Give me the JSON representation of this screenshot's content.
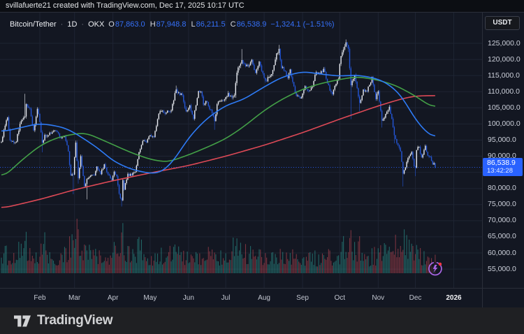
{
  "attribution": "svillafuerte21 created with TradingView.com, Dec 17, 2025 10:17 UTC",
  "legend": {
    "symbol": "Bitcoin/Tether",
    "separator": "·",
    "interval": "1D",
    "exchange": "OKX",
    "ohlc": [
      {
        "label": "O",
        "value": "87,863.0"
      },
      {
        "label": "H",
        "value": "87,948.8"
      },
      {
        "label": "L",
        "value": "86,211.5"
      },
      {
        "label": "C",
        "value": "86,538.9"
      }
    ],
    "change": "−1,324.1 (−1.51%)"
  },
  "currency_button": "USDT",
  "price_axis": {
    "tick_prices": [
      125000,
      120000,
      115000,
      110000,
      105000,
      100000,
      95000,
      90000,
      80000,
      75000,
      70000,
      65000,
      60000,
      55000
    ],
    "grid_prices": [
      125000,
      120000,
      115000,
      110000,
      105000,
      100000,
      95000,
      90000,
      85000,
      80000,
      75000,
      70000,
      65000,
      60000,
      55000
    ],
    "last_price_label": "86,538.9",
    "countdown": "13:42:28"
  },
  "time_axis": {
    "months": [
      {
        "label": "Feb",
        "date": "2025-02-01"
      },
      {
        "label": "Mar",
        "date": "2025-03-01"
      },
      {
        "label": "Apr",
        "date": "2025-04-01"
      },
      {
        "label": "May",
        "date": "2025-05-01"
      },
      {
        "label": "Jun",
        "date": "2025-06-01"
      },
      {
        "label": "Jul",
        "date": "2025-07-01"
      },
      {
        "label": "Aug",
        "date": "2025-08-01"
      },
      {
        "label": "Sep",
        "date": "2025-09-01"
      },
      {
        "label": "Oct",
        "date": "2025-10-01"
      },
      {
        "label": "Nov",
        "date": "2025-11-01"
      },
      {
        "label": "Dec",
        "date": "2025-12-01"
      },
      {
        "label": "2026",
        "date": "2026-01-01",
        "year": true
      }
    ]
  },
  "footer": {
    "brand": "TradingView"
  },
  "colors": {
    "background": "#131722",
    "grid": "#1e2433",
    "border": "#2a2e39",
    "candle_up": "#e9ecf2",
    "candle_down": "#2457d9",
    "ma_fast": "#2e7bf6",
    "ma_mid": "#43a047",
    "ma_slow": "#dd4956",
    "vol_up": "rgba(46,164,154,0.55)",
    "vol_down": "rgba(222,80,92,0.5)",
    "price_line": "#2962ff",
    "badge": "#2962ff",
    "flash_icon": "#aa66e6",
    "alert_dot": "#f23645"
  },
  "chart_data": {
    "type": "candlestick",
    "title": "Bitcoin/Tether 1D OKX",
    "x_range_dates": [
      "2025-01-01",
      "2026-01-15"
    ],
    "y_axis": {
      "min": 52000,
      "max": 129000,
      "tick_step": 5000
    },
    "grid": true,
    "last_bar": {
      "open": 87863.0,
      "high": 87948.8,
      "low": 86211.5,
      "close": 86538.9,
      "change": -1324.1,
      "change_pct": -1.51,
      "countdown": "13:42:28"
    },
    "current_price": 86538.9,
    "price_anchors": [
      [
        "2025-01-01",
        94400
      ],
      [
        "2025-01-03",
        98200
      ],
      [
        "2025-01-06",
        102100
      ],
      [
        "2025-01-08",
        95000
      ],
      [
        "2025-01-10",
        94700
      ],
      [
        "2025-01-13",
        94500
      ],
      [
        "2025-01-16",
        100000
      ],
      [
        "2025-01-20",
        102300,
        null,
        109350
      ],
      [
        "2025-01-21",
        106150
      ],
      [
        "2025-01-24",
        104800
      ],
      [
        "2025-01-27",
        98000,
        97750
      ],
      [
        "2025-01-30",
        104700
      ],
      [
        "2025-02-01",
        100600
      ],
      [
        "2025-02-03",
        94200,
        91200
      ],
      [
        "2025-02-05",
        96600
      ],
      [
        "2025-02-08",
        96500
      ],
      [
        "2025-02-12",
        97800
      ],
      [
        "2025-02-15",
        97500
      ],
      [
        "2025-02-18",
        95600
      ],
      [
        "2025-02-21",
        96100
      ],
      [
        "2025-02-24",
        91500
      ],
      [
        "2025-02-26",
        84000
      ],
      [
        "2025-02-28",
        84300,
        78200
      ],
      [
        "2025-03-02",
        94200
      ],
      [
        "2025-03-04",
        83200,
        81500
      ],
      [
        "2025-03-06",
        90000
      ],
      [
        "2025-03-09",
        80700
      ],
      [
        "2025-03-11",
        82900,
        76600
      ],
      [
        "2025-03-14",
        84000
      ],
      [
        "2025-03-17",
        84000
      ],
      [
        "2025-03-19",
        86800
      ],
      [
        "2025-03-22",
        84400
      ],
      [
        "2025-03-25",
        87500
      ],
      [
        "2025-03-28",
        84400
      ],
      [
        "2025-03-31",
        82500
      ],
      [
        "2025-04-02",
        85200
      ],
      [
        "2025-04-04",
        83800
      ],
      [
        "2025-04-06",
        78400
      ],
      [
        "2025-04-08",
        76300,
        74400
      ],
      [
        "2025-04-09",
        82600
      ],
      [
        "2025-04-10",
        79600
      ],
      [
        "2025-04-13",
        84500
      ],
      [
        "2025-04-16",
        84000
      ],
      [
        "2025-04-19",
        85200
      ],
      [
        "2025-04-22",
        91200
      ],
      [
        "2025-04-25",
        94700
      ],
      [
        "2025-04-28",
        94300
      ],
      [
        "2025-05-01",
        96500
      ],
      [
        "2025-05-04",
        95900
      ],
      [
        "2025-05-08",
        103200
      ],
      [
        "2025-05-11",
        104100
      ],
      [
        "2025-05-14",
        103500
      ],
      [
        "2025-05-18",
        104200
      ],
      [
        "2025-05-22",
        110700,
        null,
        111900
      ],
      [
        "2025-05-25",
        109000
      ],
      [
        "2025-05-27",
        108900
      ],
      [
        "2025-05-30",
        103900
      ],
      [
        "2025-06-02",
        105800
      ],
      [
        "2025-06-05",
        101600
      ],
      [
        "2025-06-09",
        110200
      ],
      [
        "2025-06-11",
        110000
      ],
      [
        "2025-06-13",
        106000
      ],
      [
        "2025-06-16",
        106800
      ],
      [
        "2025-06-20",
        103300
      ],
      [
        "2025-06-22",
        100900,
        98200
      ],
      [
        "2025-06-24",
        106100
      ],
      [
        "2025-06-27",
        107100
      ],
      [
        "2025-06-30",
        107600
      ],
      [
        "2025-07-03",
        109600
      ],
      [
        "2025-07-06",
        108200
      ],
      [
        "2025-07-08",
        108900
      ],
      [
        "2025-07-10",
        115900
      ],
      [
        "2025-07-14",
        119800,
        null,
        123200
      ],
      [
        "2025-07-16",
        118700
      ],
      [
        "2025-07-19",
        117900
      ],
      [
        "2025-07-22",
        119900
      ],
      [
        "2025-07-25",
        115800
      ],
      [
        "2025-07-28",
        119300
      ],
      [
        "2025-07-31",
        115700
      ],
      [
        "2025-08-02",
        113400
      ],
      [
        "2025-08-06",
        115000
      ],
      [
        "2025-08-08",
        116700
      ],
      [
        "2025-08-11",
        121900
      ],
      [
        "2025-08-13",
        123300,
        null,
        124500
      ],
      [
        "2025-08-15",
        117400
      ],
      [
        "2025-08-18",
        116300
      ],
      [
        "2025-08-20",
        114200
      ],
      [
        "2025-08-22",
        116900
      ],
      [
        "2025-08-24",
        113000
      ],
      [
        "2025-08-26",
        109800
      ],
      [
        "2025-08-29",
        108400
      ],
      [
        "2025-08-31",
        108200
      ],
      [
        "2025-09-03",
        111700
      ],
      [
        "2025-09-06",
        110300
      ],
      [
        "2025-09-09",
        111500
      ],
      [
        "2025-09-12",
        116100
      ],
      [
        "2025-09-15",
        115400
      ],
      [
        "2025-09-18",
        117100
      ],
      [
        "2025-09-21",
        112600
      ],
      [
        "2025-09-25",
        109200
      ],
      [
        "2025-09-28",
        112400
      ],
      [
        "2025-09-30",
        114000
      ],
      [
        "2025-10-01",
        118600
      ],
      [
        "2025-10-03",
        122200
      ],
      [
        "2025-10-06",
        125300,
        null,
        126200
      ],
      [
        "2025-10-08",
        123300
      ],
      [
        "2025-10-10",
        112000,
        101500
      ],
      [
        "2025-10-13",
        115200
      ],
      [
        "2025-10-16",
        108500
      ],
      [
        "2025-10-17",
        106500,
        103900
      ],
      [
        "2025-10-20",
        110700
      ],
      [
        "2025-10-23",
        110100
      ],
      [
        "2025-10-27",
        114600
      ],
      [
        "2025-10-30",
        107700
      ],
      [
        "2025-11-01",
        110100
      ],
      [
        "2025-11-04",
        101000,
        98900
      ],
      [
        "2025-11-07",
        103100
      ],
      [
        "2025-11-10",
        105300
      ],
      [
        "2025-11-13",
        99000
      ],
      [
        "2025-11-14",
        96500,
        94000
      ],
      [
        "2025-11-17",
        93500
      ],
      [
        "2025-11-19",
        91500
      ],
      [
        "2025-11-21",
        84600,
        80600
      ],
      [
        "2025-11-24",
        88200
      ],
      [
        "2025-11-26",
        90000
      ],
      [
        "2025-11-28",
        91300
      ],
      [
        "2025-11-30",
        86800
      ],
      [
        "2025-12-01",
        86400,
        83800
      ],
      [
        "2025-12-02",
        91900
      ],
      [
        "2025-12-04",
        92900
      ],
      [
        "2025-12-06",
        89600
      ],
      [
        "2025-12-09",
        93200
      ],
      [
        "2025-12-11",
        90200
      ],
      [
        "2025-12-13",
        89800
      ],
      [
        "2025-12-15",
        87400
      ],
      [
        "2025-12-16",
        87863
      ],
      [
        "2025-12-17",
        86539,
        86212,
        87949
      ]
    ],
    "ma_lines": [
      {
        "name": "SMA-fast",
        "anchors": [
          [
            "2025-01-01",
            97500
          ],
          [
            "2025-02-01",
            100200
          ],
          [
            "2025-02-20",
            99000
          ],
          [
            "2025-03-01",
            97300
          ],
          [
            "2025-03-20",
            92500
          ],
          [
            "2025-04-01",
            88500
          ],
          [
            "2025-04-15",
            86000
          ],
          [
            "2025-05-01",
            84600
          ],
          [
            "2025-05-10",
            84800
          ],
          [
            "2025-05-20",
            88500
          ],
          [
            "2025-06-01",
            95800
          ],
          [
            "2025-06-15",
            101500
          ],
          [
            "2025-07-01",
            105800
          ],
          [
            "2025-07-15",
            107500
          ],
          [
            "2025-08-01",
            111500
          ],
          [
            "2025-08-15",
            114500
          ],
          [
            "2025-09-01",
            116300
          ],
          [
            "2025-09-15",
            115500
          ],
          [
            "2025-10-01",
            114800
          ],
          [
            "2025-10-15",
            115200
          ],
          [
            "2025-11-01",
            114000
          ],
          [
            "2025-11-10",
            112200
          ],
          [
            "2025-11-20",
            108800
          ],
          [
            "2025-12-01",
            101200
          ],
          [
            "2025-12-10",
            97400
          ],
          [
            "2025-12-17",
            95000
          ]
        ]
      },
      {
        "name": "SMA-mid",
        "anchors": [
          [
            "2025-01-01",
            82800
          ],
          [
            "2025-01-15",
            88000
          ],
          [
            "2025-02-01",
            93300
          ],
          [
            "2025-02-15",
            95800
          ],
          [
            "2025-03-01",
            96900
          ],
          [
            "2025-03-10",
            97300
          ],
          [
            "2025-04-01",
            93600
          ],
          [
            "2025-04-15",
            91200
          ],
          [
            "2025-05-01",
            89000
          ],
          [
            "2025-05-15",
            88100
          ],
          [
            "2025-06-01",
            90400
          ],
          [
            "2025-06-15",
            92600
          ],
          [
            "2025-07-01",
            95400
          ],
          [
            "2025-07-15",
            99000
          ],
          [
            "2025-08-01",
            104200
          ],
          [
            "2025-08-15",
            107600
          ],
          [
            "2025-09-01",
            110800
          ],
          [
            "2025-09-15",
            112500
          ],
          [
            "2025-10-01",
            113800
          ],
          [
            "2025-10-15",
            114700
          ],
          [
            "2025-11-01",
            113600
          ],
          [
            "2025-11-15",
            112000
          ],
          [
            "2025-12-01",
            108700
          ],
          [
            "2025-12-10",
            106300
          ],
          [
            "2025-12-17",
            104600
          ]
        ]
      },
      {
        "name": "SMA-slow",
        "anchors": [
          [
            "2025-01-01",
            73800
          ],
          [
            "2025-02-01",
            76600
          ],
          [
            "2025-03-01",
            79600
          ],
          [
            "2025-04-01",
            82400
          ],
          [
            "2025-05-01",
            84800
          ],
          [
            "2025-06-01",
            87100
          ],
          [
            "2025-07-01",
            90000
          ],
          [
            "2025-08-01",
            93400
          ],
          [
            "2025-09-01",
            97300
          ],
          [
            "2025-10-01",
            101500
          ],
          [
            "2025-11-01",
            105600
          ],
          [
            "2025-11-20",
            107800
          ],
          [
            "2025-12-01",
            108700
          ],
          [
            "2025-12-17",
            108800
          ]
        ]
      }
    ],
    "volume_envelope": [
      [
        "2025-01-01",
        0.4
      ],
      [
        "2025-01-10",
        0.45
      ],
      [
        "2025-01-20",
        0.95
      ],
      [
        "2025-01-22",
        0.5
      ],
      [
        "2025-02-01",
        0.45
      ],
      [
        "2025-02-03",
        0.75
      ],
      [
        "2025-02-10",
        0.38
      ],
      [
        "2025-02-20",
        0.4
      ],
      [
        "2025-02-26",
        0.7
      ],
      [
        "2025-03-03",
        0.95
      ],
      [
        "2025-03-08",
        0.55
      ],
      [
        "2025-03-12",
        0.6
      ],
      [
        "2025-03-18",
        0.42
      ],
      [
        "2025-03-25",
        0.4
      ],
      [
        "2025-04-01",
        0.45
      ],
      [
        "2025-04-08",
        0.75
      ],
      [
        "2025-04-10",
        0.65
      ],
      [
        "2025-04-15",
        0.45
      ],
      [
        "2025-04-23",
        0.55
      ],
      [
        "2025-05-01",
        0.4
      ],
      [
        "2025-05-10",
        0.45
      ],
      [
        "2025-05-23",
        0.5
      ],
      [
        "2025-06-01",
        0.35
      ],
      [
        "2025-06-10",
        0.4
      ],
      [
        "2025-06-22",
        0.45
      ],
      [
        "2025-07-01",
        0.35
      ],
      [
        "2025-07-10",
        0.8
      ],
      [
        "2025-07-15",
        0.55
      ],
      [
        "2025-07-25",
        0.4
      ],
      [
        "2025-08-02",
        0.45
      ],
      [
        "2025-08-13",
        0.5
      ],
      [
        "2025-08-20",
        0.4
      ],
      [
        "2025-09-01",
        0.38
      ],
      [
        "2025-09-10",
        0.35
      ],
      [
        "2025-09-22",
        0.42
      ],
      [
        "2025-10-01",
        0.4
      ],
      [
        "2025-10-10",
        1.0
      ],
      [
        "2025-10-12",
        0.6
      ],
      [
        "2025-10-17",
        0.55
      ],
      [
        "2025-10-25",
        0.38
      ],
      [
        "2025-11-01",
        0.4
      ],
      [
        "2025-11-05",
        0.5
      ],
      [
        "2025-11-14",
        0.55
      ],
      [
        "2025-11-21",
        0.85
      ],
      [
        "2025-11-25",
        0.55
      ],
      [
        "2025-12-02",
        0.5
      ],
      [
        "2025-12-08",
        0.38
      ],
      [
        "2025-12-12",
        0.4
      ],
      [
        "2025-12-17",
        0.3
      ]
    ]
  }
}
